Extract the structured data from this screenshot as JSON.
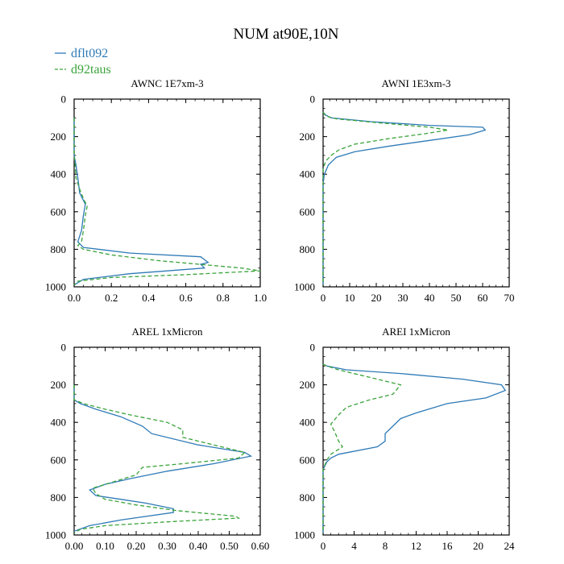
{
  "figure_title": "NUM at90E,10N",
  "legend": [
    {
      "label": "dflt092",
      "color": "#2e7ab6",
      "dash": "solid"
    },
    {
      "label": "d92taus",
      "color": "#3aa33a",
      "dash": "dashed"
    }
  ],
  "chart_data": [
    {
      "type": "line",
      "title": "AWNC  1E7xm-3",
      "xlim": [
        0,
        1.0
      ],
      "ylim": [
        0,
        1000
      ],
      "xticks": [
        0.0,
        0.2,
        0.4,
        0.6,
        0.8,
        1.0
      ],
      "xtick_labels": [
        "0.0",
        "0.2",
        "0.4",
        "0.6",
        "0.8",
        "1.0"
      ],
      "yticks": [
        0,
        200,
        400,
        600,
        800,
        1000
      ],
      "ytick_labels": [
        "0",
        "200",
        "400",
        "600",
        "800",
        "1000"
      ],
      "y_inverted": true,
      "series": [
        {
          "name": "dflt092",
          "points": [
            [
              0.0,
              100
            ],
            [
              0.0,
              300
            ],
            [
              0.01,
              350
            ],
            [
              0.02,
              420
            ],
            [
              0.03,
              500
            ],
            [
              0.06,
              560
            ],
            [
              0.05,
              620
            ],
            [
              0.04,
              700
            ],
            [
              0.02,
              760
            ],
            [
              0.05,
              790
            ],
            [
              0.3,
              820
            ],
            [
              0.68,
              840
            ],
            [
              0.72,
              870
            ],
            [
              0.68,
              880
            ],
            [
              0.7,
              900
            ],
            [
              0.3,
              930
            ],
            [
              0.05,
              960
            ],
            [
              0.0,
              990
            ]
          ]
        },
        {
          "name": "d92taus",
          "points": [
            [
              0.0,
              100
            ],
            [
              0.0,
              300
            ],
            [
              0.005,
              350
            ],
            [
              0.01,
              420
            ],
            [
              0.03,
              480
            ],
            [
              0.05,
              530
            ],
            [
              0.07,
              570
            ],
            [
              0.06,
              620
            ],
            [
              0.05,
              700
            ],
            [
              0.04,
              760
            ],
            [
              0.02,
              780
            ],
            [
              0.05,
              800
            ],
            [
              0.2,
              830
            ],
            [
              0.45,
              860
            ],
            [
              0.9,
              900
            ],
            [
              1.0,
              915
            ],
            [
              0.6,
              935
            ],
            [
              0.2,
              950
            ],
            [
              0.02,
              970
            ],
            [
              0.0,
              990
            ]
          ]
        }
      ]
    },
    {
      "type": "line",
      "title": "AWNI  1E3xm-3",
      "xlim": [
        0,
        70
      ],
      "ylim": [
        0,
        1000
      ],
      "xticks": [
        0,
        10,
        20,
        30,
        40,
        50,
        60,
        70
      ],
      "xtick_labels": [
        "0",
        "10",
        "20",
        "30",
        "40",
        "50",
        "60",
        "70"
      ],
      "yticks": [
        0,
        200,
        400,
        600,
        800,
        1000
      ],
      "ytick_labels": [
        "0",
        "200",
        "400",
        "600",
        "800",
        "1000"
      ],
      "y_inverted": true,
      "series": [
        {
          "name": "dflt092",
          "points": [
            [
              0,
              70
            ],
            [
              1,
              85
            ],
            [
              3,
              100
            ],
            [
              18,
              120
            ],
            [
              40,
              140
            ],
            [
              60,
              150
            ],
            [
              61,
              165
            ],
            [
              55,
              190
            ],
            [
              40,
              220
            ],
            [
              25,
              250
            ],
            [
              12,
              280
            ],
            [
              5,
              310
            ],
            [
              2,
              350
            ],
            [
              0.5,
              400
            ],
            [
              0,
              450
            ],
            [
              0,
              990
            ]
          ]
        },
        {
          "name": "d92taus",
          "points": [
            [
              0,
              70
            ],
            [
              1,
              90
            ],
            [
              5,
              105
            ],
            [
              20,
              125
            ],
            [
              40,
              150
            ],
            [
              47,
              165
            ],
            [
              38,
              185
            ],
            [
              25,
              210
            ],
            [
              12,
              240
            ],
            [
              6,
              270
            ],
            [
              3,
              300
            ],
            [
              1,
              330
            ],
            [
              0,
              370
            ],
            [
              0,
              990
            ]
          ]
        }
      ]
    },
    {
      "type": "line",
      "title": "AREL  1xMicron",
      "xlim": [
        0,
        0.6
      ],
      "ylim": [
        0,
        1000
      ],
      "xticks": [
        0.0,
        0.1,
        0.2,
        0.3,
        0.4,
        0.5,
        0.6
      ],
      "xtick_labels": [
        "0.00",
        "0.10",
        "0.20",
        "0.30",
        "0.40",
        "0.50",
        "0.60"
      ],
      "yticks": [
        0,
        200,
        400,
        600,
        800,
        1000
      ],
      "ytick_labels": [
        "0",
        "200",
        "400",
        "600",
        "800",
        "1000"
      ],
      "y_inverted": true,
      "series": [
        {
          "name": "dflt092",
          "points": [
            [
              0.0,
              200
            ],
            [
              0.0,
              280
            ],
            [
              0.02,
              300
            ],
            [
              0.07,
              330
            ],
            [
              0.15,
              370
            ],
            [
              0.22,
              420
            ],
            [
              0.25,
              460
            ],
            [
              0.4,
              520
            ],
            [
              0.55,
              560
            ],
            [
              0.57,
              580
            ],
            [
              0.45,
              620
            ],
            [
              0.3,
              660
            ],
            [
              0.18,
              700
            ],
            [
              0.1,
              730
            ],
            [
              0.05,
              760
            ],
            [
              0.07,
              790
            ],
            [
              0.15,
              810
            ],
            [
              0.23,
              830
            ],
            [
              0.32,
              860
            ],
            [
              0.32,
              880
            ],
            [
              0.15,
              920
            ],
            [
              0.05,
              950
            ],
            [
              0.0,
              980
            ]
          ]
        },
        {
          "name": "d92taus",
          "points": [
            [
              0.0,
              200
            ],
            [
              0.0,
              280
            ],
            [
              0.03,
              300
            ],
            [
              0.1,
              330
            ],
            [
              0.18,
              360
            ],
            [
              0.3,
              400
            ],
            [
              0.35,
              440
            ],
            [
              0.35,
              480
            ],
            [
              0.45,
              520
            ],
            [
              0.55,
              560
            ],
            [
              0.53,
              590
            ],
            [
              0.35,
              620
            ],
            [
              0.22,
              640
            ],
            [
              0.2,
              680
            ],
            [
              0.12,
              720
            ],
            [
              0.06,
              750
            ],
            [
              0.07,
              780
            ],
            [
              0.1,
              810
            ],
            [
              0.2,
              840
            ],
            [
              0.33,
              870
            ],
            [
              0.52,
              900
            ],
            [
              0.53,
              910
            ],
            [
              0.3,
              930
            ],
            [
              0.1,
              950
            ],
            [
              0.02,
              970
            ],
            [
              0.0,
              990
            ]
          ]
        }
      ]
    },
    {
      "type": "line",
      "title": "AREI  1xMicron",
      "xlim": [
        0,
        24
      ],
      "ylim": [
        0,
        1000
      ],
      "xticks": [
        0,
        4,
        8,
        12,
        16,
        20,
        24
      ],
      "xtick_labels": [
        "0",
        "4",
        "8",
        "12",
        "16",
        "20",
        "24"
      ],
      "yticks": [
        0,
        200,
        400,
        600,
        800,
        1000
      ],
      "ytick_labels": [
        "0",
        "200",
        "400",
        "600",
        "800",
        "1000"
      ],
      "y_inverted": true,
      "series": [
        {
          "name": "dflt092",
          "points": [
            [
              0,
              90
            ],
            [
              0.5,
              100
            ],
            [
              3,
              120
            ],
            [
              10,
              140
            ],
            [
              18,
              170
            ],
            [
              23,
              200
            ],
            [
              23.5,
              230
            ],
            [
              21,
              270
            ],
            [
              16,
              300
            ],
            [
              12,
              350
            ],
            [
              10,
              380
            ],
            [
              9,
              420
            ],
            [
              8,
              460
            ],
            [
              8,
              500
            ],
            [
              7,
              530
            ],
            [
              2,
              570
            ],
            [
              1,
              590
            ],
            [
              0.5,
              610
            ],
            [
              0,
              650
            ],
            [
              0,
              990
            ]
          ]
        },
        {
          "name": "d92taus",
          "points": [
            [
              0,
              90
            ],
            [
              0.5,
              100
            ],
            [
              2,
              120
            ],
            [
              6,
              160
            ],
            [
              10,
              200
            ],
            [
              9,
              250
            ],
            [
              6,
              280
            ],
            [
              3,
              320
            ],
            [
              2,
              360
            ],
            [
              1,
              410
            ],
            [
              1.5,
              450
            ],
            [
              2,
              500
            ],
            [
              2.5,
              530
            ],
            [
              1,
              570
            ],
            [
              0.5,
              600
            ],
            [
              0,
              650
            ],
            [
              0,
              990
            ]
          ]
        }
      ]
    }
  ]
}
